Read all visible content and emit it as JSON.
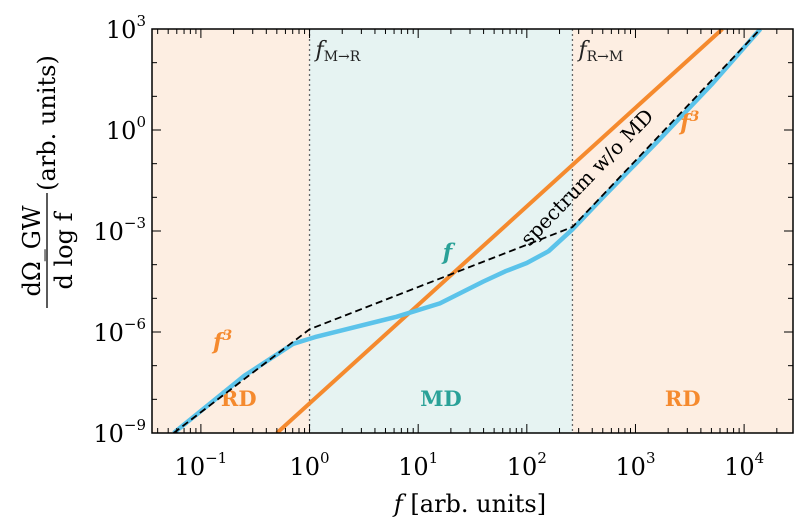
{
  "chart_data": {
    "type": "line",
    "xlabel": "f [arb. units]",
    "ylabel_top": "dΩ_GW",
    "ylabel_bottom": "d log f",
    "ylabel_suffix": "(arb. units)",
    "xscale": "log",
    "yscale": "log",
    "xlim_log10": [
      -1.45,
      4.45
    ],
    "ylim_log10": [
      -9,
      3
    ],
    "x_ticks": [
      {
        "base": "10",
        "exp": "−1",
        "v": -1
      },
      {
        "base": "10",
        "exp": "0",
        "v": 0
      },
      {
        "base": "10",
        "exp": "1",
        "v": 1
      },
      {
        "base": "10",
        "exp": "2",
        "v": 2
      },
      {
        "base": "10",
        "exp": "3",
        "v": 3
      },
      {
        "base": "10",
        "exp": "4",
        "v": 4
      }
    ],
    "y_ticks": [
      {
        "base": "10",
        "exp": "−9",
        "v": -9
      },
      {
        "base": "10",
        "exp": "−6",
        "v": -6
      },
      {
        "base": "10",
        "exp": "−3",
        "v": -3
      },
      {
        "base": "10",
        "exp": "0",
        "v": 0
      },
      {
        "base": "10",
        "exp": "3",
        "v": 3
      }
    ],
    "grid": false,
    "regions": [
      {
        "label": "RD",
        "x_from_log10": -1.45,
        "x_to_log10": 0,
        "color": "#fdeee2",
        "label_color": "#f58a2e"
      },
      {
        "label": "MD",
        "x_from_log10": 0,
        "x_to_log10": 2.42,
        "color": "#e6f3f2",
        "label_color": "#2aa198"
      },
      {
        "label": "RD",
        "x_from_log10": 2.42,
        "x_to_log10": 4.45,
        "color": "#fdeee2",
        "label_color": "#f58a2e"
      }
    ],
    "vlines": [
      {
        "x_log10": 0,
        "label_main": "f",
        "label_sub": "M→R"
      },
      {
        "x_log10": 2.42,
        "label_main": "f",
        "label_sub": "R→M"
      }
    ],
    "series": [
      {
        "name": "",
        "color": "#f58a2e",
        "style": "solid",
        "points_log10": [
          [
            -0.3,
            -9.0
          ],
          [
            3.8,
            3.0
          ]
        ]
      },
      {
        "name": "spectrum w/o MD",
        "color": "#000000",
        "style": "dashed",
        "points_log10": [
          [
            -1.25,
            -9.0
          ],
          [
            0.0,
            -5.92
          ],
          [
            2.42,
            -2.88
          ],
          [
            4.15,
            3.0
          ]
        ]
      },
      {
        "name": "",
        "color": "#5bc3ea",
        "style": "solid",
        "points_log10": [
          [
            -1.25,
            -9.0
          ],
          [
            -0.6,
            -7.3
          ],
          [
            -0.15,
            -6.35
          ],
          [
            0.05,
            -6.15
          ],
          [
            0.3,
            -5.95
          ],
          [
            0.8,
            -5.55
          ],
          [
            1.2,
            -5.15
          ],
          [
            1.6,
            -4.5
          ],
          [
            1.8,
            -4.2
          ],
          [
            2.0,
            -3.95
          ],
          [
            2.2,
            -3.6
          ],
          [
            2.42,
            -2.95
          ],
          [
            2.7,
            -2.0
          ],
          [
            3.2,
            -0.35
          ],
          [
            3.7,
            1.35
          ],
          [
            4.15,
            3.0
          ]
        ]
      }
    ],
    "annotations": [
      {
        "text": "f",
        "sup": "3",
        "color": "#f58a2e",
        "x_log10": -0.8,
        "y_log10": -6.5
      },
      {
        "text": "f",
        "sup": "",
        "color": "#2aa198",
        "x_log10": 1.27,
        "y_log10": -3.85
      },
      {
        "text": "f",
        "sup": "3",
        "color": "#f58a2e",
        "x_log10": 3.5,
        "y_log10": 0.0
      },
      {
        "text": "spectrum w/o MD",
        "sup": "",
        "color": "#000000",
        "x_log10": 2.6,
        "y_log10": -1.55,
        "rotate": -46
      }
    ]
  }
}
